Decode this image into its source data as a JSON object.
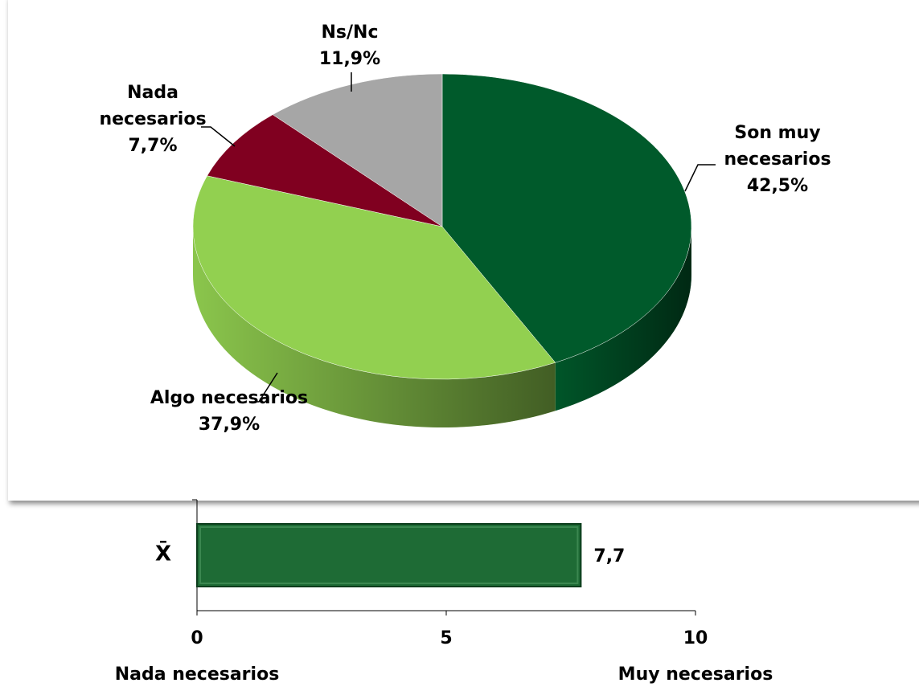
{
  "chart_data": [
    {
      "type": "pie3d",
      "categories": [
        "Son muy necesarios",
        "Algo necesarios",
        "Nada necesarios",
        "Ns/Nc"
      ],
      "values": [
        42.5,
        37.9,
        7.7,
        11.9
      ],
      "value_labels": [
        "42,5%",
        "37,9%",
        "7,7%",
        "11,9%"
      ],
      "colors": [
        "#005a2b",
        "#92d050",
        "#800020",
        "#a6a6a6"
      ]
    },
    {
      "type": "hbar",
      "categories": [
        "X̄"
      ],
      "values": [
        7.7
      ],
      "value_labels": [
        "7,7"
      ],
      "color": "#1e6b35",
      "xlim": [
        0,
        10
      ],
      "xticks": [
        0,
        5,
        10
      ],
      "annotations": [
        "Nada necesarios",
        "Muy necesarios"
      ]
    }
  ]
}
